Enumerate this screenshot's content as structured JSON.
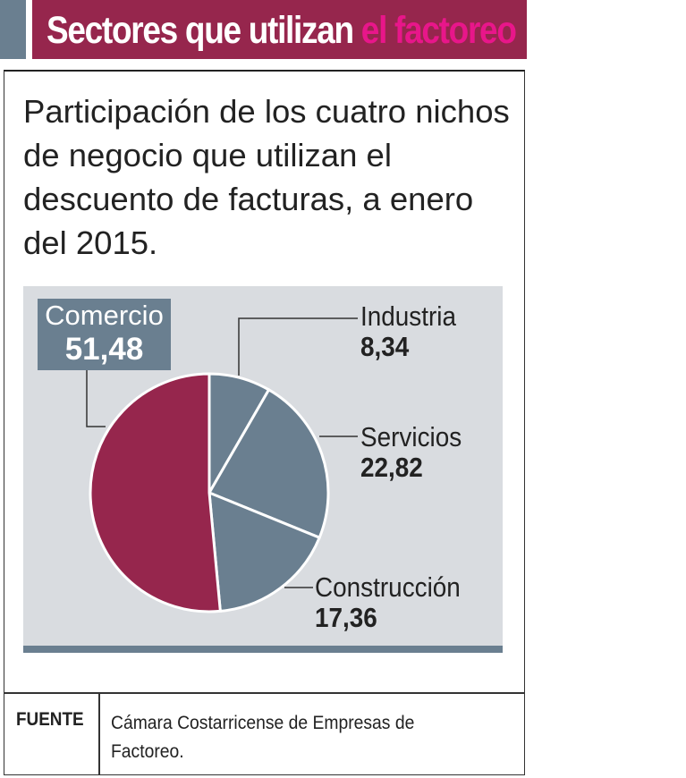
{
  "header": {
    "title_main": "Sectores que utilizan ",
    "title_accent": "el factoreo"
  },
  "subtitle": "Participación de los cuatro nichos de negocio que utilizan el descuento de facturas, a enero del 2015.",
  "colors": {
    "comercio": "#96264d",
    "others": "#6a7f90",
    "accent": "#e8168a",
    "chart_bg": "#d9dce0"
  },
  "chart_data": {
    "type": "pie",
    "title": "Sectores que utilizan el factoreo",
    "subtitle": "Participación de los cuatro nichos de negocio que utilizan el descuento de facturas, a enero del 2015.",
    "unit": "%",
    "slices": [
      {
        "label": "Industria",
        "value": 8.34,
        "display": "8,34"
      },
      {
        "label": "Servicios",
        "value": 22.82,
        "display": "22,82"
      },
      {
        "label": "Construcción",
        "value": 17.36,
        "display": "17,36"
      },
      {
        "label": "Comercio",
        "value": 51.48,
        "display": "51,48"
      }
    ],
    "start": "top (12 o'clock), clockwise"
  },
  "source": {
    "label": "FUENTE",
    "text": "Cámara Costarricense de Empresas de Factoreo."
  }
}
